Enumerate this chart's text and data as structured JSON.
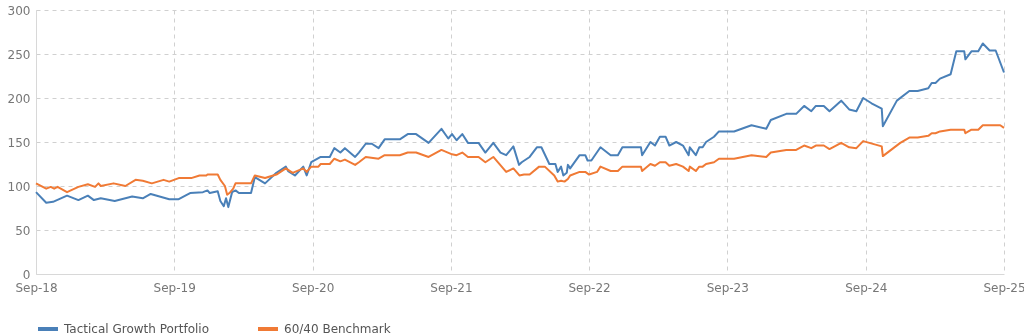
{
  "chart_data": {
    "type": "line",
    "xlim": [
      "2018-09-01",
      "2025-09-01"
    ],
    "xticks": [
      {
        "value": "2018-09-01",
        "label": "Sep-18"
      },
      {
        "value": "2019-09-01",
        "label": "Sep-19"
      },
      {
        "value": "2020-09-01",
        "label": "Sep-20"
      },
      {
        "value": "2021-09-01",
        "label": "Sep-21"
      },
      {
        "value": "2022-09-01",
        "label": "Sep-22"
      },
      {
        "value": "2023-09-01",
        "label": "Sep-23"
      },
      {
        "value": "2024-09-01",
        "label": "Sep-24"
      },
      {
        "value": "2025-09-01",
        "label": "Sep-25"
      }
    ],
    "ylim": [
      0,
      300
    ],
    "yticks": [
      0,
      50,
      100,
      150,
      200,
      250,
      300
    ],
    "grid": true,
    "legend": "bottom",
    "series": [
      {
        "name": "Tactical Growth Portfolio",
        "color": "#4a80b8",
        "x": [
          "2018-09-01",
          "2018-09-28",
          "2018-10-16",
          "2018-11-22",
          "2018-12-22",
          "2019-01-16",
          "2019-02-01",
          "2019-02-19",
          "2019-03-28",
          "2019-05-13",
          "2019-06-10",
          "2019-07-01",
          "2019-08-19",
          "2019-09-13",
          "2019-10-13",
          "2019-11-16",
          "2019-11-28",
          "2019-12-04",
          "2019-12-25",
          "2020-01-01",
          "2020-01-10",
          "2020-01-16",
          "2020-01-22",
          "2020-02-01",
          "2020-02-10",
          "2020-02-19",
          "2020-03-22",
          "2020-04-01",
          "2020-04-28",
          "2020-05-28",
          "2020-06-22",
          "2020-06-28",
          "2020-07-16",
          "2020-08-07",
          "2020-08-16",
          "2020-08-28",
          "2020-09-22",
          "2020-10-16",
          "2020-10-28",
          "2020-11-13",
          "2020-11-25",
          "2020-12-22",
          "2021-01-01",
          "2021-01-19",
          "2021-02-04",
          "2021-02-22",
          "2021-03-10",
          "2021-04-19",
          "2021-05-10",
          "2021-06-01",
          "2021-07-04",
          "2021-08-07",
          "2021-08-25",
          "2021-09-04",
          "2021-09-16",
          "2021-10-01",
          "2021-10-16",
          "2021-11-13",
          "2021-12-01",
          "2021-12-22",
          "2022-01-10",
          "2022-01-25",
          "2022-02-13",
          "2022-02-28",
          "2022-03-07",
          "2022-03-28",
          "2022-04-16",
          "2022-04-28",
          "2022-05-19",
          "2022-06-04",
          "2022-06-10",
          "2022-06-19",
          "2022-06-25",
          "2022-07-04",
          "2022-07-07",
          "2022-07-13",
          "2022-08-07",
          "2022-08-22",
          "2022-08-28",
          "2022-09-07",
          "2022-10-01",
          "2022-10-28",
          "2022-11-16",
          "2022-11-28",
          "2023-01-16",
          "2023-01-19",
          "2023-02-10",
          "2023-02-22",
          "2023-03-07",
          "2023-03-22",
          "2023-04-01",
          "2023-04-19",
          "2023-05-07",
          "2023-05-22",
          "2023-05-25",
          "2023-06-10",
          "2023-06-19",
          "2023-06-28",
          "2023-07-07",
          "2023-07-28",
          "2023-08-10",
          "2023-09-19",
          "2023-11-04",
          "2023-12-13",
          "2023-12-25",
          "2024-02-04",
          "2024-03-01",
          "2024-03-22",
          "2024-04-10",
          "2024-04-22",
          "2024-05-13",
          "2024-05-28",
          "2024-06-28",
          "2024-07-19",
          "2024-08-07",
          "2024-08-25",
          "2024-09-16",
          "2024-10-13",
          "2024-10-16",
          "2024-11-22",
          "2024-12-25",
          "2025-01-16",
          "2025-02-13",
          "2025-02-22",
          "2025-03-04",
          "2025-03-16",
          "2025-04-13",
          "2025-04-28",
          "2025-05-19",
          "2025-05-22",
          "2025-06-07",
          "2025-06-25",
          "2025-07-07",
          "2025-07-25",
          "2025-08-10",
          "2025-09-01"
        ],
        "values": [
          93,
          81,
          82,
          89,
          84,
          89,
          84,
          86,
          83,
          88,
          86,
          91,
          85,
          85,
          92,
          93,
          95,
          92,
          94,
          83,
          77,
          86,
          76,
          93,
          95,
          92,
          92,
          110,
          103,
          115,
          122,
          117,
          112,
          122,
          112,
          127,
          133,
          133,
          143,
          138,
          143,
          133,
          138,
          148,
          148,
          143,
          153,
          153,
          159,
          159,
          149,
          165,
          154,
          159,
          152,
          159,
          149,
          149,
          138,
          149,
          138,
          135,
          145,
          124,
          127,
          133,
          144,
          144,
          125,
          125,
          116,
          122,
          112,
          115,
          124,
          120,
          135,
          135,
          129,
          129,
          144,
          135,
          135,
          144,
          144,
          135,
          150,
          146,
          156,
          156,
          146,
          150,
          146,
          135,
          144,
          135,
          144,
          144,
          150,
          156,
          162,
          162,
          169,
          165,
          175,
          182,
          182,
          191,
          185,
          191,
          191,
          185,
          197,
          187,
          185,
          200,
          194,
          188,
          168,
          197,
          208,
          208,
          211,
          217,
          217,
          222,
          227,
          253,
          253,
          244,
          253,
          253,
          262,
          254,
          254,
          229
        ]
      },
      {
        "name": "60/40 Benchmark",
        "color": "#f07a35",
        "x": [
          "2018-09-01",
          "2018-09-28",
          "2018-10-10",
          "2018-10-19",
          "2018-10-28",
          "2018-11-22",
          "2018-12-22",
          "2019-01-16",
          "2019-02-04",
          "2019-02-13",
          "2019-02-19",
          "2019-03-25",
          "2019-04-25",
          "2019-05-22",
          "2019-06-10",
          "2019-07-04",
          "2019-08-04",
          "2019-08-19",
          "2019-09-13",
          "2019-10-16",
          "2019-11-07",
          "2019-11-25",
          "2019-11-28",
          "2019-12-25",
          "2020-01-01",
          "2020-01-13",
          "2020-01-19",
          "2020-01-25",
          "2020-02-04",
          "2020-02-10",
          "2020-03-22",
          "2020-04-01",
          "2020-04-28",
          "2020-05-28",
          "2020-06-22",
          "2020-07-10",
          "2020-08-07",
          "2020-08-16",
          "2020-08-28",
          "2020-09-16",
          "2020-09-22",
          "2020-10-16",
          "2020-10-28",
          "2020-11-13",
          "2020-11-25",
          "2020-12-22",
          "2021-01-01",
          "2021-01-19",
          "2021-02-22",
          "2021-03-10",
          "2021-04-19",
          "2021-05-10",
          "2021-06-01",
          "2021-07-04",
          "2021-08-07",
          "2021-09-04",
          "2021-09-16",
          "2021-10-01",
          "2021-10-16",
          "2021-11-13",
          "2021-12-01",
          "2021-12-22",
          "2022-01-25",
          "2022-02-13",
          "2022-03-01",
          "2022-03-13",
          "2022-03-28",
          "2022-04-22",
          "2022-05-07",
          "2022-06-01",
          "2022-06-10",
          "2022-06-19",
          "2022-06-28",
          "2022-07-07",
          "2022-07-13",
          "2022-08-07",
          "2022-08-22",
          "2022-09-01",
          "2022-09-22",
          "2022-10-01",
          "2022-10-28",
          "2022-11-16",
          "2022-11-28",
          "2023-01-16",
          "2023-01-19",
          "2023-02-10",
          "2023-02-22",
          "2023-03-07",
          "2023-03-22",
          "2023-04-01",
          "2023-04-19",
          "2023-05-07",
          "2023-05-22",
          "2023-05-25",
          "2023-06-10",
          "2023-06-19",
          "2023-06-28",
          "2023-07-07",
          "2023-07-28",
          "2023-08-10",
          "2023-09-19",
          "2023-11-04",
          "2023-12-13",
          "2023-12-25",
          "2024-02-04",
          "2024-03-01",
          "2024-03-22",
          "2024-04-10",
          "2024-04-22",
          "2024-05-13",
          "2024-05-28",
          "2024-06-28",
          "2024-07-19",
          "2024-08-07",
          "2024-08-25",
          "2024-10-13",
          "2024-10-16",
          "2024-12-01",
          "2024-12-25",
          "2025-01-16",
          "2025-02-13",
          "2025-02-22",
          "2025-03-04",
          "2025-03-16",
          "2025-04-13",
          "2025-05-19",
          "2025-05-22",
          "2025-06-07",
          "2025-06-25",
          "2025-07-07",
          "2025-08-22",
          "2025-09-01"
        ],
        "values": [
          103,
          97,
          99,
          97,
          99,
          93,
          99,
          102,
          99,
          103,
          100,
          103,
          100,
          107,
          106,
          103,
          107,
          105,
          109,
          109,
          112,
          112,
          113,
          113,
          107,
          100,
          90,
          92,
          97,
          103,
          103,
          112,
          109,
          113,
          120,
          115,
          120,
          116,
          122,
          122,
          125,
          125,
          131,
          128,
          130,
          124,
          127,
          133,
          131,
          135,
          135,
          138,
          138,
          133,
          141,
          136,
          135,
          138,
          133,
          133,
          127,
          133,
          116,
          120,
          112,
          113,
          113,
          122,
          122,
          112,
          105,
          106,
          105,
          108,
          112,
          116,
          116,
          113,
          116,
          122,
          117,
          117,
          122,
          122,
          117,
          125,
          123,
          127,
          127,
          123,
          125,
          122,
          117,
          122,
          117,
          122,
          122,
          125,
          127,
          131,
          131,
          135,
          133,
          138,
          141,
          141,
          146,
          143,
          146,
          146,
          142,
          149,
          144,
          143,
          151,
          145,
          134,
          149,
          155,
          155,
          157,
          160,
          160,
          162,
          164,
          164,
          160,
          164,
          164,
          169,
          169,
          166
        ]
      }
    ]
  }
}
